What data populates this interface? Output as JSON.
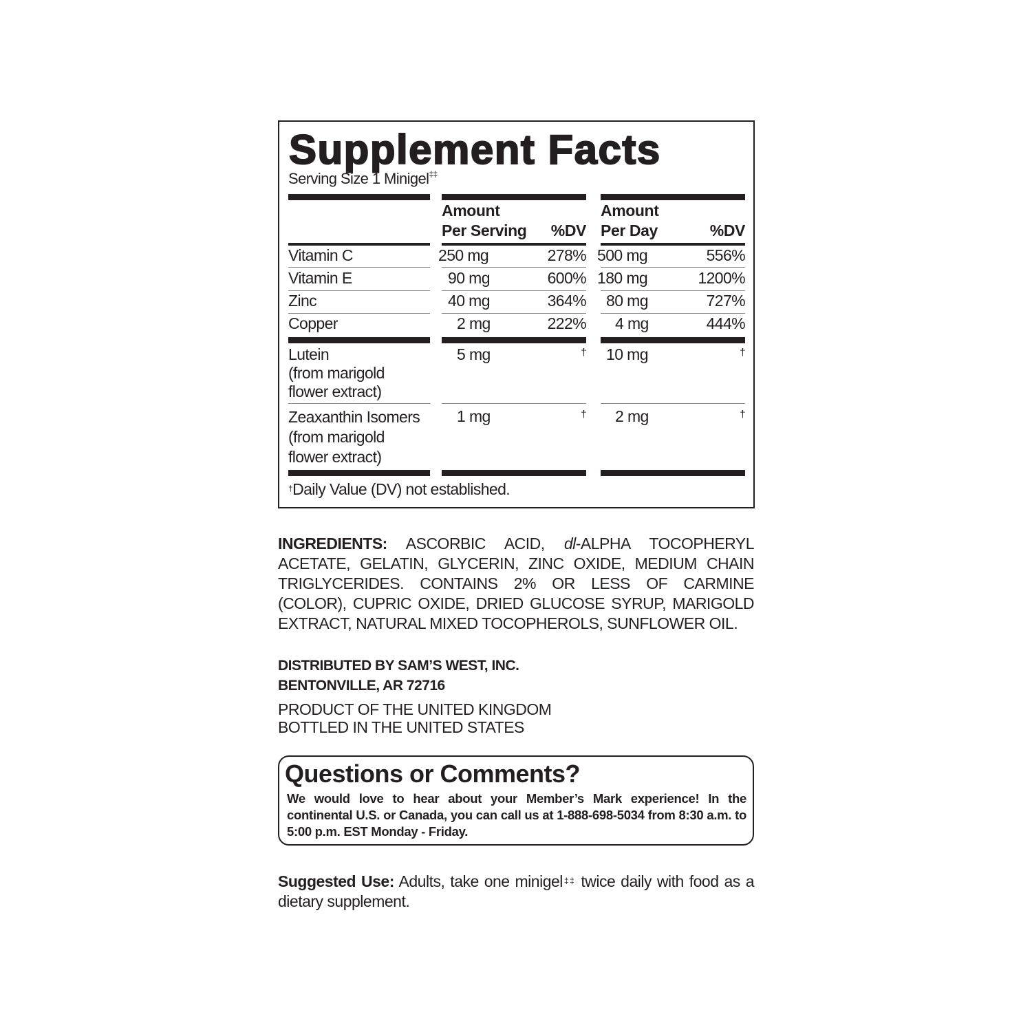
{
  "facts": {
    "title": "Supplement Facts",
    "serving_size": "Serving Size 1 Minigel",
    "serving_mark": "‡‡",
    "headers": {
      "amount": "Amount",
      "per_serving": "Per Serving",
      "dv": "%DV",
      "per_day": "Per Day"
    },
    "rows": [
      {
        "name": "Vitamin C",
        "serving": "250 mg",
        "serving_dv": "278%",
        "day": "500 mg",
        "day_dv": "556%"
      },
      {
        "name": "Vitamin E",
        "serving": "90 mg",
        "serving_dv": "600%",
        "day": "180 mg",
        "day_dv": "1200%"
      },
      {
        "name": "Zinc",
        "serving": "40 mg",
        "serving_dv": "364%",
        "day": "80 mg",
        "day_dv": "727%"
      },
      {
        "name": "Copper",
        "serving": "2 mg",
        "serving_dv": "222%",
        "day": "4 mg",
        "day_dv": "444%"
      }
    ],
    "rows2": [
      {
        "name": "Lutein",
        "sub1": "(from marigold",
        "sub2": "flower extract)",
        "serving": "5 mg",
        "serving_dv": "†",
        "day": "10 mg",
        "day_dv": "†"
      },
      {
        "name": "Zeaxanthin Isomers",
        "sub1": "(from marigold",
        "sub2": "flower extract)",
        "serving": "1 mg",
        "serving_dv": "†",
        "day": "2 mg",
        "day_dv": "†"
      }
    ],
    "footnote_mark": "†",
    "footnote": "Daily Value (DV) not established."
  },
  "ingredients": {
    "label": "INGREDIENTS:",
    "text_a": " ASCORBIC ACID, ",
    "italic": "dl",
    "text_b": "-ALPHA TOCOPHERYL ACETATE, GELATIN, GLYCERIN, ZINC OXIDE, MEDIUM CHAIN TRIGLYCERIDES. CONTAINS 2% OR LESS OF CARMINE (COLOR), CUPRIC OXIDE, DRIED GLUCOSE SYRUP, MARIGOLD EXTRACT, NATURAL MIXED TOCOPHEROLS, SUNFLOWER OIL."
  },
  "distributor": {
    "line1": "DISTRIBUTED BY SAM’S WEST, INC.",
    "line2": "BENTONVILLE, AR 72716"
  },
  "origin": {
    "line1": "PRODUCT OF THE UNITED KINGDOM",
    "line2": "BOTTLED IN THE UNITED STATES"
  },
  "questions": {
    "title": "Questions or Comments?",
    "text": "We would love to hear about your Member’s Mark experience! In the continental U.S. or Canada, you can call us at 1-888-698-5034 from 8:30 a.m. to 5:00 p.m. EST Monday - Friday."
  },
  "suggested": {
    "label": "Suggested Use:",
    "text_a": " Adults, take one minigel",
    "mark": "‡‡",
    "text_b": " twice daily with food as a dietary supplement."
  }
}
